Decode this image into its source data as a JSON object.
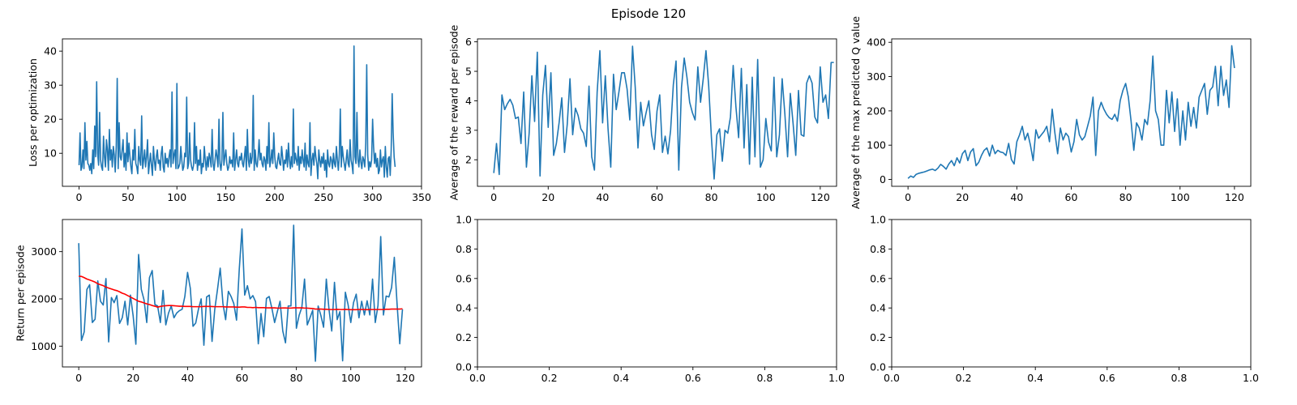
{
  "figure": {
    "suptitle": "Episode 120",
    "colors": {
      "line": "#1f77b4",
      "smooth": "#ff0000",
      "axis": "#000000"
    }
  },
  "chart_data": [
    {
      "id": "loss",
      "type": "line",
      "title": "",
      "xlabel": "",
      "ylabel": "Loss per optimization",
      "xlim": [
        -17,
        350
      ],
      "ylim": [
        0.3,
        43.6
      ],
      "xticks": [
        0,
        50,
        100,
        150,
        200,
        250,
        300,
        350
      ],
      "yticks": [
        10,
        20,
        30,
        40
      ],
      "grid": false,
      "series": [
        {
          "color": "#1f77b4",
          "style": "line",
          "x_start": 0,
          "x_step": 1,
          "values": [
            6.5,
            16.0,
            5.0,
            6.0,
            11.0,
            5.5,
            19.0,
            8.0,
            13.5,
            7.0,
            6.5,
            5.0,
            7.0,
            4.0,
            11.0,
            5.5,
            18.0,
            9.0,
            31.0,
            10.0,
            6.5,
            22.0,
            8.0,
            6.0,
            5.0,
            15.0,
            9.0,
            6.0,
            14.0,
            11.0,
            5.0,
            17.0,
            8.0,
            11.0,
            6.0,
            12.0,
            9.5,
            4.5,
            12.0,
            32.0,
            5.5,
            19.0,
            9.0,
            8.0,
            11.0,
            14.0,
            6.0,
            10.0,
            5.0,
            16.0,
            7.5,
            13.0,
            9.0,
            6.0,
            4.0,
            11.0,
            8.0,
            17.0,
            7.0,
            6.0,
            4.0,
            12.0,
            8.0,
            6.5,
            21.0,
            5.5,
            8.0,
            11.0,
            6.0,
            9.0,
            14.0,
            4.0,
            7.0,
            10.0,
            6.5,
            3.5,
            12.0,
            8.0,
            5.0,
            9.0,
            11.0,
            7.0,
            8.0,
            5.0,
            10.0,
            12.0,
            6.0,
            4.5,
            10.0,
            7.0,
            8.5,
            6.0,
            9.0,
            11.0,
            6.0,
            28.0,
            7.0,
            9.5,
            11.0,
            5.5,
            30.5,
            5.5,
            6.0,
            7.0,
            12.0,
            8.0,
            5.0,
            6.0,
            10.0,
            9.0,
            26.5,
            5.5,
            7.0,
            16.0,
            8.0,
            6.0,
            5.0,
            6.5,
            19.0,
            7.0,
            12.0,
            5.0,
            8.0,
            6.5,
            11.0,
            4.0,
            7.0,
            6.0,
            12.0,
            8.0,
            5.0,
            9.0,
            6.0,
            10.0,
            8.5,
            6.0,
            17.0,
            7.0,
            5.0,
            8.0,
            11.0,
            9.0,
            6.0,
            20.0,
            7.0,
            5.0,
            8.0,
            22.0,
            6.5,
            9.0,
            11.0,
            7.0,
            5.0,
            6.0,
            9.0,
            7.0,
            8.0,
            6.0,
            16.0,
            5.0,
            8.0,
            11.0,
            7.0,
            6.0,
            9.0,
            8.0,
            10.0,
            7.0,
            6.0,
            9.0,
            12.0,
            5.0,
            17.0,
            8.0,
            6.0,
            10.0,
            7.0,
            9.0,
            27.0,
            5.0,
            11.0,
            7.0,
            6.0,
            9.0,
            14.0,
            8.0,
            10.0,
            7.0,
            6.0,
            9.0,
            8.0,
            5.0,
            12.0,
            7.0,
            19.0,
            6.0,
            8.0,
            11.0,
            7.0,
            16.0,
            9.0,
            6.0,
            5.5,
            8.0,
            10.0,
            7.0,
            6.5,
            12.0,
            9.0,
            5.0,
            8.0,
            7.0,
            11.0,
            6.0,
            13.0,
            8.0,
            5.5,
            9.0,
            6.0,
            23.0,
            7.0,
            10.0,
            8.0,
            6.5,
            12.0,
            5.0,
            9.0,
            7.0,
            11.0,
            8.0,
            6.0,
            13.0,
            5.0,
            9.5,
            7.0,
            6.0,
            19.0,
            3.5,
            8.0,
            10.0,
            6.5,
            12.0,
            9.0,
            7.0,
            2.5,
            11.0,
            8.0,
            6.0,
            9.0,
            7.0,
            10.0,
            5.0,
            8.0,
            3.0,
            11.0,
            7.0,
            6.0,
            9.0,
            8.0,
            5.5,
            10.0,
            7.0,
            6.0,
            12.0,
            8.0,
            5.0,
            9.5,
            23.0,
            6.0,
            12.0,
            9.0,
            7.0,
            5.0,
            8.0,
            11.0,
            7.0,
            6.0,
            14.0,
            8.0,
            6.5,
            4.0,
            41.5,
            9.0,
            7.0,
            22.0,
            8.0,
            6.0,
            11.0,
            7.5,
            5.5,
            9.0,
            8.0,
            6.0,
            13.0,
            36.0,
            9.5,
            5.0,
            7.5,
            6.0,
            8.0,
            20.0,
            12.0,
            7.0,
            10.0,
            6.0,
            8.5,
            4.0,
            5.0,
            11.0,
            6.0,
            8.0,
            9.0,
            3.0,
            12.0,
            6.0,
            3.0,
            8.5,
            9.0,
            3.5,
            11.0,
            27.5,
            16.0,
            9.0,
            6.0
          ]
        }
      ]
    },
    {
      "id": "reward",
      "type": "line",
      "title": "",
      "xlabel": "",
      "ylabel": "Average of the reward per episode",
      "xlim": [
        -6,
        126
      ],
      "ylim": [
        1.1,
        6.1
      ],
      "xticks": [
        0,
        20,
        40,
        60,
        80,
        100,
        120
      ],
      "yticks": [
        2,
        3,
        4,
        5,
        6
      ],
      "grid": false,
      "series": [
        {
          "color": "#1f77b4",
          "style": "line",
          "x_start": 0,
          "x_step": 1,
          "values": [
            1.55,
            2.55,
            1.5,
            4.2,
            3.7,
            3.9,
            4.05,
            3.85,
            3.4,
            3.45,
            2.55,
            4.3,
            1.75,
            2.9,
            4.85,
            3.3,
            5.65,
            1.45,
            4.2,
            5.2,
            3.1,
            4.95,
            2.15,
            2.55,
            3.25,
            4.1,
            2.25,
            3.2,
            4.75,
            2.85,
            3.75,
            3.5,
            3.05,
            2.9,
            2.45,
            4.5,
            2.1,
            1.65,
            4.3,
            5.7,
            3.25,
            4.85,
            3.05,
            1.75,
            4.9,
            3.7,
            4.3,
            4.95,
            4.95,
            4.4,
            3.35,
            5.85,
            4.45,
            2.4,
            3.95,
            3.15,
            3.6,
            4.0,
            2.85,
            2.35,
            3.65,
            4.2,
            2.25,
            2.8,
            2.2,
            3.0,
            4.55,
            5.35,
            1.65,
            4.45,
            5.45,
            4.8,
            3.95,
            3.6,
            3.35,
            5.15,
            3.95,
            4.75,
            5.7,
            4.5,
            2.75,
            1.35,
            2.85,
            3.05,
            1.95,
            3.0,
            2.9,
            3.45,
            5.2,
            3.8,
            2.75,
            5.1,
            2.4,
            4.55,
            1.85,
            4.8,
            2.1,
            5.4,
            1.75,
            2.0,
            3.4,
            2.6,
            2.3,
            4.8,
            2.1,
            2.85,
            4.75,
            3.55,
            2.1,
            4.25,
            3.25,
            2.15,
            4.35,
            2.85,
            2.8,
            4.6,
            4.85,
            4.6,
            3.45,
            3.25,
            5.15,
            3.95,
            4.2,
            3.4,
            5.3,
            5.3
          ]
        }
      ]
    },
    {
      "id": "qvalue",
      "type": "line",
      "title": "",
      "xlabel": "",
      "ylabel": "Average of the max predicted Q value",
      "xlim": [
        -6,
        126
      ],
      "ylim": [
        -20,
        410
      ],
      "xticks": [
        0,
        20,
        40,
        60,
        80,
        100,
        120
      ],
      "yticks": [
        0,
        100,
        200,
        300,
        400
      ],
      "grid": false,
      "series": [
        {
          "color": "#1f77b4",
          "style": "line",
          "x_start": 0,
          "x_step": 1,
          "values": [
            3,
            10,
            6,
            15,
            18,
            20,
            22,
            25,
            28,
            30,
            26,
            33,
            44,
            38,
            30,
            45,
            55,
            40,
            63,
            48,
            75,
            85,
            55,
            80,
            90,
            40,
            50,
            70,
            85,
            92,
            68,
            100,
            75,
            85,
            80,
            78,
            70,
            105,
            58,
            45,
            110,
            130,
            155,
            115,
            135,
            100,
            55,
            145,
            120,
            130,
            140,
            155,
            110,
            205,
            135,
            75,
            150,
            115,
            135,
            125,
            80,
            110,
            175,
            130,
            115,
            125,
            155,
            185,
            240,
            70,
            200,
            225,
            205,
            190,
            180,
            175,
            190,
            170,
            230,
            260,
            280,
            240,
            170,
            85,
            165,
            150,
            115,
            175,
            160,
            230,
            360,
            200,
            175,
            100,
            100,
            260,
            165,
            255,
            140,
            235,
            100,
            200,
            115,
            225,
            155,
            210,
            150,
            240,
            260,
            280,
            190,
            260,
            270,
            330,
            215,
            330,
            245,
            290,
            210,
            390,
            325
          ]
        }
      ]
    },
    {
      "id": "return",
      "type": "line",
      "title": "",
      "xlabel": "",
      "ylabel": "Return per episode",
      "xlim": [
        -6,
        126
      ],
      "ylim": [
        560,
        3680
      ],
      "xticks": [
        0,
        20,
        40,
        60,
        80,
        100,
        120
      ],
      "yticks": [
        1000,
        2000,
        3000
      ],
      "grid": false,
      "series": [
        {
          "color": "#1f77b4",
          "style": "line",
          "x_start": 0,
          "x_step": 1,
          "values": [
            3180,
            1120,
            1300,
            2200,
            2300,
            1500,
            1570,
            2380,
            1950,
            1870,
            2430,
            1090,
            2030,
            1920,
            2070,
            1480,
            1600,
            1950,
            1450,
            2080,
            1640,
            1040,
            2940,
            2200,
            1980,
            1500,
            2450,
            2600,
            1880,
            1850,
            1500,
            2180,
            1450,
            1700,
            1850,
            1600,
            1700,
            1750,
            1780,
            2050,
            2560,
            2230,
            1420,
            1490,
            1780,
            2000,
            1020,
            2040,
            2080,
            1100,
            1780,
            2200,
            2650,
            1900,
            1560,
            2160,
            2050,
            1900,
            1550,
            2620,
            3480,
            2080,
            2280,
            2000,
            2070,
            1940,
            1050,
            1690,
            1200,
            2010,
            2050,
            1800,
            1500,
            1730,
            1950,
            1320,
            1070,
            1850,
            1850,
            3560,
            1380,
            1650,
            1820,
            2420,
            1450,
            1600,
            1760,
            680,
            1850,
            1650,
            1400,
            2420,
            1770,
            1320,
            2350,
            1560,
            1730,
            690,
            2140,
            1880,
            1500,
            1920,
            2100,
            1600,
            1950,
            1660,
            1960,
            1660,
            2420,
            1500,
            1860,
            3320,
            1660,
            2060,
            2040,
            2240,
            2880,
            1900,
            1050,
            1780
          ]
        },
        {
          "color": "#ff0000",
          "style": "line",
          "x_start": 0,
          "x_step": 1,
          "values": [
            2480,
            2475,
            2450,
            2420,
            2400,
            2380,
            2355,
            2320,
            2300,
            2280,
            2250,
            2230,
            2210,
            2190,
            2175,
            2150,
            2120,
            2100,
            2070,
            2040,
            2010,
            1980,
            1950,
            1935,
            1915,
            1895,
            1880,
            1860,
            1845,
            1825,
            1840,
            1850,
            1855,
            1860,
            1860,
            1855,
            1850,
            1845,
            1845,
            1840,
            1840,
            1840,
            1835,
            1835,
            1835,
            1835,
            1840,
            1840,
            1840,
            1838,
            1835,
            1835,
            1835,
            1835,
            1830,
            1830,
            1830,
            1830,
            1825,
            1825,
            1830,
            1830,
            1820,
            1820,
            1815,
            1820,
            1815,
            1815,
            1815,
            1810,
            1810,
            1810,
            1810,
            1805,
            1805,
            1808,
            1808,
            1805,
            1805,
            1810,
            1810,
            1810,
            1810,
            1805,
            1805,
            1800,
            1795,
            1785,
            1785,
            1785,
            1780,
            1780,
            1775,
            1775,
            1775,
            1778,
            1775,
            1775,
            1778,
            1775,
            1772,
            1772,
            1772,
            1775,
            1775,
            1775,
            1772,
            1775,
            1775,
            1775,
            1775,
            1775,
            1775,
            1780,
            1780,
            1785,
            1785,
            1785,
            1785,
            1790
          ]
        }
      ]
    },
    {
      "id": "empty1",
      "type": "line",
      "title": "",
      "xlabel": "",
      "ylabel": "",
      "xlim": [
        0,
        1
      ],
      "ylim": [
        0,
        1
      ],
      "xticks": [
        0,
        0.2,
        0.4,
        0.6,
        0.8,
        1.0
      ],
      "yticks": [
        0,
        0.2,
        0.4,
        0.6,
        0.8,
        1.0
      ],
      "xtick_labels": [
        "0.0",
        "0.2",
        "0.4",
        "0.6",
        "0.8",
        "1.0"
      ],
      "ytick_labels": [
        "0.0",
        "0.2",
        "0.4",
        "0.6",
        "0.8",
        "1.0"
      ],
      "grid": false,
      "series": []
    },
    {
      "id": "empty2",
      "type": "line",
      "title": "",
      "xlabel": "",
      "ylabel": "",
      "xlim": [
        0,
        1
      ],
      "ylim": [
        0,
        1
      ],
      "xticks": [
        0,
        0.2,
        0.4,
        0.6,
        0.8,
        1.0
      ],
      "yticks": [
        0,
        0.2,
        0.4,
        0.6,
        0.8,
        1.0
      ],
      "xtick_labels": [
        "0.0",
        "0.2",
        "0.4",
        "0.6",
        "0.8",
        "1.0"
      ],
      "ytick_labels": [
        "0.0",
        "0.2",
        "0.4",
        "0.6",
        "0.8",
        "1.0"
      ],
      "grid": false,
      "series": []
    }
  ]
}
